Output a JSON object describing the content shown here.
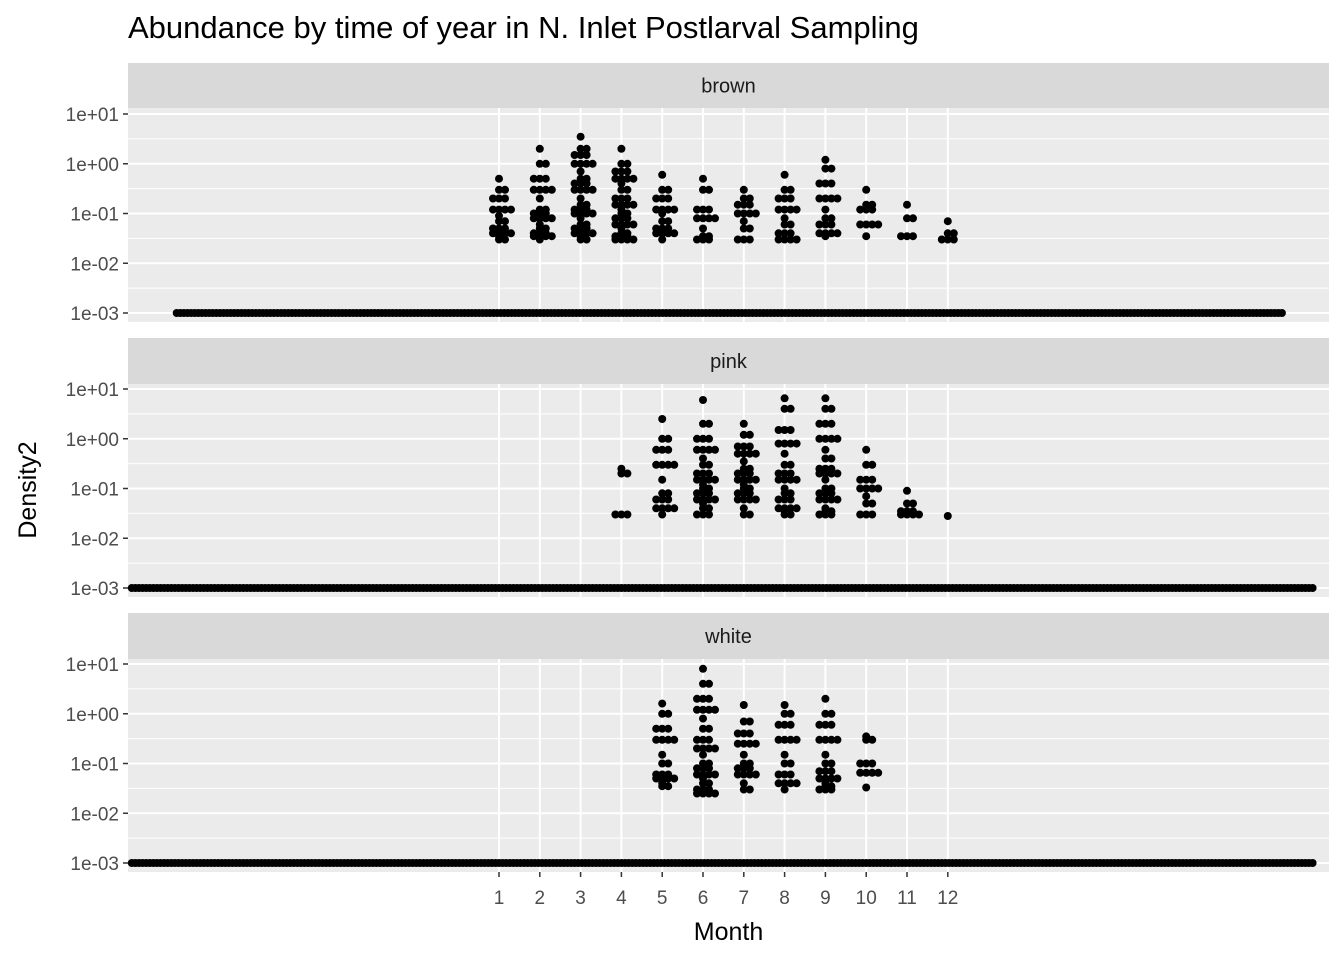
{
  "chart_data": {
    "type": "scatter",
    "title": "Abundance by time of year in N. Inlet Postlarval Sampling",
    "xlabel": "Month",
    "ylabel": "Density2",
    "y_scale": "log10",
    "x_ticks": [
      "1",
      "2",
      "3",
      "4",
      "5",
      "6",
      "7",
      "8",
      "9",
      "10",
      "11",
      "12"
    ],
    "y_ticks": [
      "1e-03",
      "1e-02",
      "1e-01",
      "1e+00",
      "1e+01"
    ],
    "y_tick_values": [
      0.001,
      0.01,
      0.1,
      1,
      10
    ],
    "grid": true,
    "legend": "none",
    "point_color": "#000000",
    "panel_background": "#EBEBEB",
    "strip_background": "#D9D9D9",
    "facets": [
      {
        "label": "brown",
        "zero_baseline": {
          "value": 0.001,
          "month_range": [
            -6.9,
            20.2
          ]
        },
        "months": [
          {
            "month": 1,
            "values": [
              0.5,
              0.3,
              0.2,
              0.12,
              0.09,
              0.07,
              0.05,
              0.04,
              0.035,
              0.03
            ]
          },
          {
            "month": 2,
            "values": [
              2.0,
              1.0,
              0.5,
              0.3,
              0.2,
              0.12,
              0.1,
              0.08,
              0.06,
              0.05,
              0.04,
              0.035,
              0.03
            ]
          },
          {
            "month": 3,
            "values": [
              3.5,
              2.0,
              1.5,
              1.0,
              0.7,
              0.5,
              0.4,
              0.3,
              0.2,
              0.15,
              0.12,
              0.1,
              0.08,
              0.06,
              0.05,
              0.04,
              0.035,
              0.03
            ]
          },
          {
            "month": 4,
            "values": [
              2.0,
              1.0,
              0.7,
              0.5,
              0.4,
              0.3,
              0.2,
              0.15,
              0.12,
              0.1,
              0.08,
              0.06,
              0.05,
              0.04,
              0.035,
              0.03
            ]
          },
          {
            "month": 5,
            "values": [
              0.6,
              0.3,
              0.2,
              0.12,
              0.1,
              0.07,
              0.05,
              0.04,
              0.03
            ]
          },
          {
            "month": 6,
            "values": [
              0.5,
              0.3,
              0.12,
              0.08,
              0.05,
              0.035,
              0.03
            ]
          },
          {
            "month": 7,
            "values": [
              0.3,
              0.2,
              0.15,
              0.1,
              0.07,
              0.05,
              0.03
            ]
          },
          {
            "month": 8,
            "values": [
              0.6,
              0.3,
              0.2,
              0.12,
              0.08,
              0.06,
              0.04,
              0.03
            ]
          },
          {
            "month": 9,
            "values": [
              1.2,
              0.8,
              0.4,
              0.2,
              0.12,
              0.08,
              0.06,
              0.04,
              0.035
            ]
          },
          {
            "month": 10,
            "values": [
              0.3,
              0.15,
              0.12,
              0.06,
              0.035
            ]
          },
          {
            "month": 11,
            "values": [
              0.15,
              0.08,
              0.035
            ]
          },
          {
            "month": 12,
            "values": [
              0.07,
              0.04,
              0.03
            ]
          }
        ]
      },
      {
        "label": "pink",
        "zero_baseline": {
          "value": 0.001,
          "month_range": [
            -8.0,
            21.0
          ]
        },
        "months": [
          {
            "month": 4,
            "values": [
              0.25,
              0.2,
              0.03
            ]
          },
          {
            "month": 5,
            "values": [
              2.5,
              1.0,
              0.6,
              0.3,
              0.15,
              0.08,
              0.06,
              0.04,
              0.03
            ]
          },
          {
            "month": 6,
            "values": [
              6.0,
              2.0,
              1.0,
              0.6,
              0.4,
              0.3,
              0.2,
              0.15,
              0.12,
              0.1,
              0.08,
              0.06,
              0.05,
              0.04,
              0.03
            ]
          },
          {
            "month": 7,
            "values": [
              2.0,
              1.2,
              0.7,
              0.5,
              0.35,
              0.25,
              0.2,
              0.15,
              0.12,
              0.1,
              0.08,
              0.06,
              0.04,
              0.03
            ]
          },
          {
            "month": 8,
            "values": [
              6.5,
              4.0,
              1.5,
              0.8,
              0.5,
              0.3,
              0.2,
              0.15,
              0.1,
              0.08,
              0.06,
              0.04,
              0.035,
              0.03
            ]
          },
          {
            "month": 9,
            "values": [
              6.5,
              4.0,
              2.0,
              1.0,
              0.6,
              0.4,
              0.25,
              0.2,
              0.15,
              0.1,
              0.08,
              0.06,
              0.04,
              0.035,
              0.03
            ]
          },
          {
            "month": 10,
            "values": [
              0.6,
              0.3,
              0.15,
              0.1,
              0.07,
              0.05,
              0.03
            ]
          },
          {
            "month": 11,
            "values": [
              0.09,
              0.05,
              0.035,
              0.03
            ]
          },
          {
            "month": 12,
            "values": [
              0.028
            ]
          }
        ]
      },
      {
        "label": "white",
        "zero_baseline": {
          "value": 0.001,
          "month_range": [
            -8.0,
            21.0
          ]
        },
        "months": [
          {
            "month": 5,
            "values": [
              1.6,
              1.0,
              0.5,
              0.3,
              0.15,
              0.1,
              0.06,
              0.05,
              0.04,
              0.035
            ]
          },
          {
            "month": 6,
            "values": [
              8.0,
              4.0,
              2.0,
              1.2,
              0.8,
              0.5,
              0.3,
              0.2,
              0.15,
              0.1,
              0.08,
              0.06,
              0.05,
              0.04,
              0.03,
              0.025
            ]
          },
          {
            "month": 7,
            "values": [
              1.5,
              0.7,
              0.4,
              0.25,
              0.15,
              0.1,
              0.08,
              0.06,
              0.04,
              0.03
            ]
          },
          {
            "month": 8,
            "values": [
              1.5,
              1.0,
              0.6,
              0.3,
              0.15,
              0.1,
              0.06,
              0.04,
              0.03
            ]
          },
          {
            "month": 9,
            "values": [
              2.0,
              1.0,
              0.6,
              0.3,
              0.15,
              0.1,
              0.07,
              0.05,
              0.04,
              0.035,
              0.03
            ]
          },
          {
            "month": 10,
            "values": [
              0.35,
              0.3,
              0.1,
              0.065,
              0.033
            ]
          }
        ]
      }
    ]
  }
}
